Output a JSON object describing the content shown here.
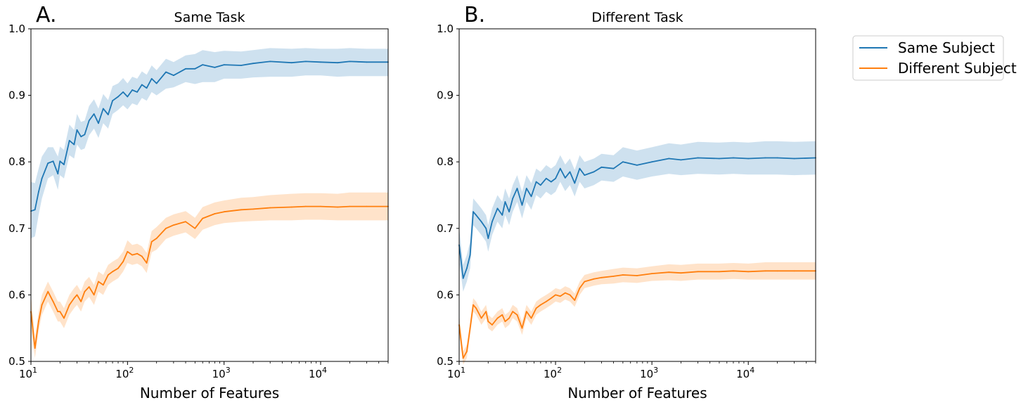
{
  "legend": {
    "entries": [
      {
        "name": "Same Subject",
        "color": "#1f77b4"
      },
      {
        "name": "Different Subject",
        "color": "#ff7f0e"
      }
    ],
    "placement": "outside-right-top"
  },
  "chart_data": [
    {
      "type": "line",
      "panel_letter": "A.",
      "title": "Same Task",
      "xlabel": "Number of Features",
      "ylabel": "",
      "xscale": "log",
      "xlim": [
        10,
        50000
      ],
      "ylim": [
        0.5,
        1.0
      ],
      "xticks": [
        {
          "value": 10,
          "base": "10",
          "exp": "1"
        },
        {
          "value": 100,
          "base": "10",
          "exp": "2"
        },
        {
          "value": 1000,
          "base": "10",
          "exp": "3"
        },
        {
          "value": 10000,
          "base": "10",
          "exp": "4"
        }
      ],
      "yticks": [
        "0.5",
        "0.6",
        "0.7",
        "0.8",
        "0.9",
        "1.0"
      ],
      "grid": false,
      "series": [
        {
          "name": "Same Subject",
          "color": "#1f77b4",
          "x": [
            10,
            11,
            12,
            13,
            15,
            17,
            19,
            20,
            22,
            25,
            28,
            30,
            33,
            36,
            40,
            45,
            50,
            56,
            63,
            70,
            80,
            90,
            100,
            112,
            126,
            141,
            158,
            178,
            200,
            250,
            300,
            400,
            500,
            600,
            800,
            1000,
            1500,
            2000,
            3000,
            5000,
            7000,
            10000,
            15000,
            20000,
            30000,
            50000
          ],
          "y": [
            0.726,
            0.728,
            0.755,
            0.775,
            0.798,
            0.801,
            0.782,
            0.801,
            0.796,
            0.832,
            0.826,
            0.848,
            0.838,
            0.841,
            0.862,
            0.872,
            0.858,
            0.88,
            0.871,
            0.892,
            0.898,
            0.905,
            0.898,
            0.908,
            0.905,
            0.916,
            0.911,
            0.925,
            0.918,
            0.935,
            0.93,
            0.94,
            0.94,
            0.946,
            0.942,
            0.946,
            0.945,
            0.948,
            0.951,
            0.949,
            0.951,
            0.95,
            0.949,
            0.951,
            0.95,
            0.95
          ],
          "lower": [
            0.685,
            0.688,
            0.72,
            0.745,
            0.775,
            0.78,
            0.758,
            0.78,
            0.775,
            0.81,
            0.805,
            0.826,
            0.818,
            0.82,
            0.84,
            0.85,
            0.836,
            0.858,
            0.85,
            0.872,
            0.878,
            0.885,
            0.879,
            0.888,
            0.885,
            0.896,
            0.892,
            0.905,
            0.9,
            0.91,
            0.912,
            0.92,
            0.917,
            0.92,
            0.92,
            0.925,
            0.925,
            0.927,
            0.928,
            0.928,
            0.93,
            0.93,
            0.928,
            0.929,
            0.929,
            0.929
          ],
          "upper": [
            0.77,
            0.768,
            0.79,
            0.808,
            0.822,
            0.822,
            0.808,
            0.823,
            0.818,
            0.856,
            0.848,
            0.872,
            0.86,
            0.862,
            0.884,
            0.894,
            0.88,
            0.902,
            0.893,
            0.914,
            0.918,
            0.926,
            0.918,
            0.928,
            0.925,
            0.936,
            0.931,
            0.945,
            0.938,
            0.955,
            0.95,
            0.96,
            0.962,
            0.968,
            0.965,
            0.967,
            0.966,
            0.968,
            0.971,
            0.97,
            0.971,
            0.97,
            0.97,
            0.971,
            0.97,
            0.97
          ]
        },
        {
          "name": "Different Subject",
          "color": "#ff7f0e",
          "x": [
            10,
            11,
            12,
            13,
            15,
            17,
            19,
            20,
            22,
            25,
            28,
            30,
            33,
            36,
            40,
            45,
            50,
            56,
            63,
            70,
            80,
            90,
            100,
            112,
            126,
            141,
            158,
            178,
            200,
            250,
            300,
            400,
            500,
            600,
            800,
            1000,
            1500,
            2000,
            3000,
            5000,
            7000,
            10000,
            15000,
            20000,
            30000,
            50000
          ],
          "y": [
            0.575,
            0.52,
            0.56,
            0.585,
            0.605,
            0.59,
            0.575,
            0.575,
            0.565,
            0.585,
            0.595,
            0.6,
            0.59,
            0.605,
            0.612,
            0.6,
            0.62,
            0.615,
            0.63,
            0.635,
            0.64,
            0.65,
            0.665,
            0.66,
            0.662,
            0.658,
            0.648,
            0.68,
            0.685,
            0.7,
            0.705,
            0.71,
            0.7,
            0.715,
            0.722,
            0.725,
            0.728,
            0.729,
            0.731,
            0.732,
            0.733,
            0.733,
            0.732,
            0.733,
            0.733,
            0.733
          ],
          "lower": [
            0.55,
            0.505,
            0.545,
            0.57,
            0.59,
            0.575,
            0.56,
            0.56,
            0.55,
            0.57,
            0.58,
            0.585,
            0.575,
            0.59,
            0.597,
            0.585,
            0.605,
            0.6,
            0.615,
            0.62,
            0.625,
            0.635,
            0.648,
            0.645,
            0.647,
            0.643,
            0.633,
            0.664,
            0.668,
            0.684,
            0.689,
            0.694,
            0.684,
            0.698,
            0.705,
            0.708,
            0.71,
            0.711,
            0.712,
            0.712,
            0.713,
            0.713,
            0.712,
            0.712,
            0.712,
            0.712
          ],
          "upper": [
            0.6,
            0.535,
            0.575,
            0.6,
            0.62,
            0.605,
            0.59,
            0.59,
            0.58,
            0.6,
            0.61,
            0.615,
            0.605,
            0.62,
            0.627,
            0.615,
            0.635,
            0.63,
            0.645,
            0.65,
            0.655,
            0.665,
            0.682,
            0.675,
            0.677,
            0.673,
            0.663,
            0.696,
            0.702,
            0.716,
            0.721,
            0.726,
            0.716,
            0.732,
            0.739,
            0.742,
            0.746,
            0.747,
            0.75,
            0.752,
            0.753,
            0.753,
            0.752,
            0.754,
            0.754,
            0.754
          ]
        }
      ]
    },
    {
      "type": "line",
      "panel_letter": "B.",
      "title": "Different Task",
      "xlabel": "Number of Features",
      "ylabel": "",
      "xscale": "log",
      "xlim": [
        10,
        50000
      ],
      "ylim": [
        0.5,
        1.0
      ],
      "xticks": [
        {
          "value": 10,
          "base": "10",
          "exp": "1"
        },
        {
          "value": 100,
          "base": "10",
          "exp": "2"
        },
        {
          "value": 1000,
          "base": "10",
          "exp": "3"
        },
        {
          "value": 10000,
          "base": "10",
          "exp": "4"
        }
      ],
      "yticks": [
        "0.5",
        "0.6",
        "0.7",
        "0.8",
        "0.9",
        "1.0"
      ],
      "grid": false,
      "series": [
        {
          "name": "Same Subject",
          "color": "#1f77b4",
          "x": [
            10,
            11,
            12,
            13,
            14,
            15,
            17,
            19,
            20,
            22,
            25,
            28,
            30,
            33,
            36,
            40,
            45,
            50,
            56,
            63,
            70,
            80,
            90,
            100,
            112,
            126,
            141,
            158,
            178,
            200,
            250,
            300,
            400,
            500,
            700,
            1000,
            1500,
            2000,
            3000,
            5000,
            7000,
            10000,
            15000,
            20000,
            30000,
            50000
          ],
          "y": [
            0.675,
            0.625,
            0.64,
            0.66,
            0.725,
            0.72,
            0.71,
            0.7,
            0.685,
            0.71,
            0.73,
            0.72,
            0.74,
            0.725,
            0.745,
            0.76,
            0.735,
            0.76,
            0.748,
            0.77,
            0.765,
            0.775,
            0.77,
            0.775,
            0.79,
            0.776,
            0.785,
            0.768,
            0.79,
            0.78,
            0.785,
            0.792,
            0.79,
            0.8,
            0.795,
            0.8,
            0.805,
            0.803,
            0.806,
            0.805,
            0.806,
            0.805,
            0.806,
            0.806,
            0.805,
            0.806
          ],
          "lower": [
            0.65,
            0.605,
            0.62,
            0.64,
            0.705,
            0.7,
            0.69,
            0.68,
            0.665,
            0.69,
            0.71,
            0.7,
            0.72,
            0.705,
            0.725,
            0.74,
            0.715,
            0.74,
            0.728,
            0.75,
            0.745,
            0.755,
            0.75,
            0.755,
            0.77,
            0.756,
            0.765,
            0.748,
            0.77,
            0.76,
            0.765,
            0.772,
            0.77,
            0.778,
            0.773,
            0.778,
            0.782,
            0.78,
            0.782,
            0.781,
            0.782,
            0.781,
            0.781,
            0.781,
            0.78,
            0.781
          ],
          "upper": [
            0.7,
            0.645,
            0.66,
            0.68,
            0.745,
            0.74,
            0.73,
            0.72,
            0.705,
            0.73,
            0.75,
            0.74,
            0.76,
            0.745,
            0.765,
            0.78,
            0.755,
            0.78,
            0.768,
            0.79,
            0.785,
            0.795,
            0.79,
            0.795,
            0.81,
            0.796,
            0.805,
            0.788,
            0.81,
            0.8,
            0.805,
            0.812,
            0.81,
            0.822,
            0.817,
            0.822,
            0.828,
            0.826,
            0.83,
            0.829,
            0.83,
            0.829,
            0.831,
            0.831,
            0.83,
            0.831
          ]
        },
        {
          "name": "Different Subject",
          "color": "#ff7f0e",
          "x": [
            10,
            11,
            12,
            13,
            14,
            15,
            17,
            19,
            20,
            22,
            25,
            28,
            30,
            33,
            36,
            40,
            45,
            50,
            56,
            63,
            70,
            80,
            90,
            100,
            112,
            126,
            141,
            158,
            178,
            200,
            250,
            300,
            400,
            500,
            700,
            1000,
            1500,
            2000,
            3000,
            5000,
            7000,
            10000,
            15000,
            20000,
            30000,
            50000
          ],
          "y": [
            0.555,
            0.505,
            0.515,
            0.55,
            0.585,
            0.58,
            0.565,
            0.575,
            0.56,
            0.555,
            0.565,
            0.57,
            0.56,
            0.565,
            0.575,
            0.57,
            0.55,
            0.575,
            0.565,
            0.58,
            0.585,
            0.59,
            0.595,
            0.6,
            0.598,
            0.603,
            0.6,
            0.592,
            0.61,
            0.62,
            0.624,
            0.626,
            0.628,
            0.63,
            0.629,
            0.632,
            0.634,
            0.633,
            0.635,
            0.635,
            0.636,
            0.635,
            0.636,
            0.636,
            0.636,
            0.636
          ],
          "lower": [
            0.54,
            0.495,
            0.505,
            0.54,
            0.575,
            0.57,
            0.555,
            0.565,
            0.55,
            0.545,
            0.555,
            0.56,
            0.55,
            0.555,
            0.565,
            0.56,
            0.54,
            0.565,
            0.555,
            0.57,
            0.575,
            0.58,
            0.585,
            0.59,
            0.588,
            0.593,
            0.59,
            0.582,
            0.6,
            0.61,
            0.614,
            0.616,
            0.617,
            0.619,
            0.618,
            0.621,
            0.622,
            0.621,
            0.623,
            0.623,
            0.624,
            0.623,
            0.623,
            0.623,
            0.623,
            0.623
          ],
          "upper": [
            0.57,
            0.515,
            0.525,
            0.56,
            0.595,
            0.59,
            0.575,
            0.585,
            0.57,
            0.565,
            0.575,
            0.58,
            0.57,
            0.575,
            0.585,
            0.58,
            0.56,
            0.585,
            0.575,
            0.59,
            0.595,
            0.6,
            0.605,
            0.61,
            0.608,
            0.613,
            0.61,
            0.602,
            0.62,
            0.63,
            0.634,
            0.636,
            0.639,
            0.641,
            0.64,
            0.643,
            0.646,
            0.645,
            0.647,
            0.647,
            0.648,
            0.647,
            0.649,
            0.649,
            0.649,
            0.649
          ]
        }
      ]
    }
  ]
}
